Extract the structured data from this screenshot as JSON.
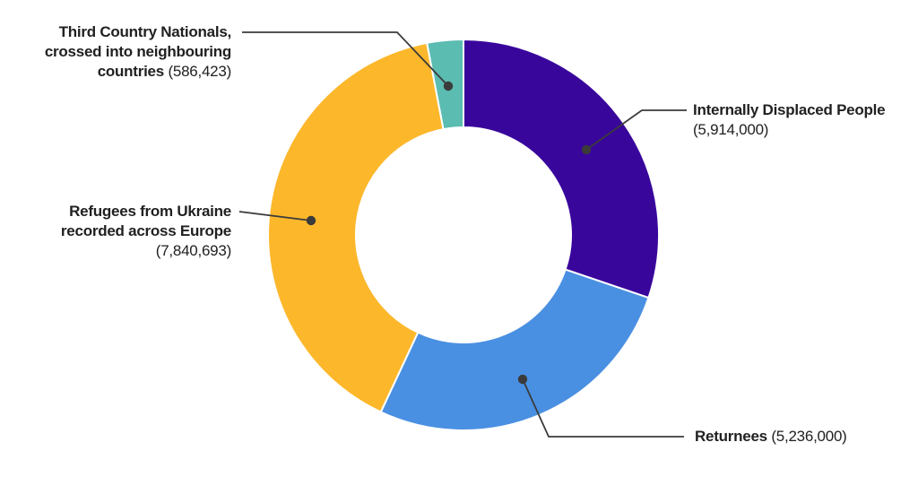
{
  "chart_data": {
    "type": "donut",
    "start_angle": "top",
    "direction": "clockwise",
    "inner_radius_ratio": 0.55,
    "labels_style": "callouts-with-leader-lines",
    "background": "#FFFFFF",
    "segments": [
      {
        "id": "idp",
        "label": "Internally Displaced People",
        "value": 5914000,
        "display_value": "5,914,000",
        "color": "#39069C"
      },
      {
        "id": "returnees",
        "label": "Returnees",
        "value": 5236000,
        "display_value": "5,236,000",
        "color": "#4A90E2"
      },
      {
        "id": "refugees",
        "label": "Refugees from Ukraine recorded across Europe",
        "value": 7840693,
        "display_value": "7,840,693",
        "color": "#FCB72B"
      },
      {
        "id": "tcn",
        "label": "Third Country Nationals, crossed into neighbouring countries",
        "value": 586423,
        "display_value": "586,423",
        "color": "#5BBCB1"
      }
    ]
  },
  "callouts": {
    "tcn": {
      "line1": "Third Country Nationals,",
      "line2": "crossed into neighbouring",
      "line3_bold": "countries",
      "value": "(586,423)"
    },
    "idp": {
      "line1": "Internally Displaced People",
      "value": "(5,914,000)"
    },
    "refugees": {
      "line1": "Refugees from Ukraine",
      "line2": "recorded across Europe",
      "value": "(7,840,693)"
    },
    "returnees": {
      "name": "Returnees",
      "value": "(5,236,000)"
    }
  },
  "style": {
    "text_color": "#212121",
    "leader_line_color": "#3B3B3B",
    "slice_separator_color": "#FFFFFF"
  }
}
